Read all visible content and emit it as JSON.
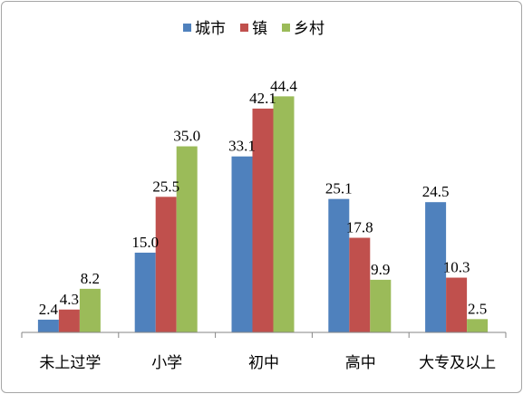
{
  "chart_data": {
    "type": "bar",
    "title": "",
    "xlabel": "",
    "ylabel": "",
    "ylim": [
      0,
      50
    ],
    "grid": false,
    "legend_position": "top",
    "categories": [
      "未上过学",
      "小学",
      "初中",
      "高中",
      "大专及以上"
    ],
    "series": [
      {
        "name": "城市",
        "color": "#4F81BD",
        "values": [
          2.4,
          15.0,
          33.1,
          25.1,
          24.5
        ]
      },
      {
        "name": "镇",
        "color": "#C0504D",
        "values": [
          4.3,
          25.5,
          42.1,
          17.8,
          10.3
        ]
      },
      {
        "name": "乡村",
        "color": "#9BBB59",
        "values": [
          8.2,
          35.0,
          44.4,
          9.9,
          2.5
        ]
      }
    ]
  }
}
